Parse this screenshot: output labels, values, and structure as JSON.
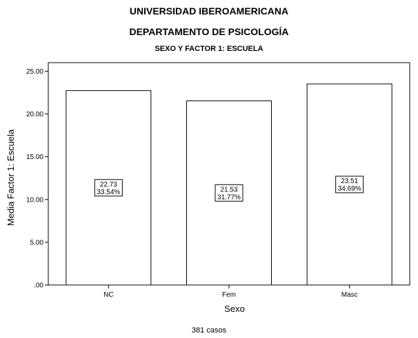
{
  "header": {
    "title": "UNIVERSIDAD IBEROAMERICANA",
    "subtitle": "DEPARTAMENTO DE PSICOLOGÍA"
  },
  "footer": {
    "cases": "381 casos"
  },
  "chart_data": {
    "type": "bar",
    "title": "SEXO Y FACTOR 1: ESCUELA",
    "xlabel": "Sexo",
    "ylabel": "Media Factor 1: Escuela",
    "categories": [
      "NC",
      "Fem",
      "Masc"
    ],
    "values": [
      22.73,
      21.53,
      23.51
    ],
    "data_labels": [
      {
        "value": "22.73",
        "percent": "33.54%"
      },
      {
        "value": "21.53",
        "percent": "31.77%"
      },
      {
        "value": "23.51",
        "percent": "34.69%"
      }
    ],
    "ylim": [
      0,
      26.0
    ],
    "yticks": [
      ".00",
      "5.00",
      "10.00",
      "15.00",
      "20.00",
      "25.00"
    ],
    "ytick_values": [
      0,
      5,
      10,
      15,
      20,
      25
    ],
    "grid": false,
    "bar_fill": "#ffffff",
    "bar_stroke": "#000000"
  }
}
